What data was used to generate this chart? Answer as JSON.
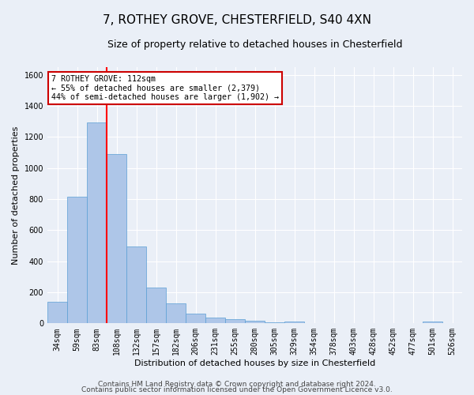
{
  "title1": "7, ROTHEY GROVE, CHESTERFIELD, S40 4XN",
  "title2": "Size of property relative to detached houses in Chesterfield",
  "xlabel": "Distribution of detached houses by size in Chesterfield",
  "ylabel": "Number of detached properties",
  "bar_color": "#aec6e8",
  "bar_edge_color": "#5a9fd4",
  "bar_width": 1.0,
  "categories": [
    "34sqm",
    "59sqm",
    "83sqm",
    "108sqm",
    "132sqm",
    "157sqm",
    "182sqm",
    "206sqm",
    "231sqm",
    "255sqm",
    "280sqm",
    "305sqm",
    "329sqm",
    "354sqm",
    "378sqm",
    "403sqm",
    "428sqm",
    "452sqm",
    "477sqm",
    "501sqm",
    "526sqm"
  ],
  "values": [
    138,
    815,
    1295,
    1090,
    495,
    232,
    130,
    65,
    37,
    26,
    15,
    7,
    14,
    3,
    3,
    1,
    1,
    1,
    1,
    14,
    1
  ],
  "red_line_index": 3,
  "ylim": [
    0,
    1650
  ],
  "yticks": [
    0,
    200,
    400,
    600,
    800,
    1000,
    1200,
    1400,
    1600
  ],
  "annotation_text": "7 ROTHEY GROVE: 112sqm\n← 55% of detached houses are smaller (2,379)\n44% of semi-detached houses are larger (1,902) →",
  "annotation_box_color": "#ffffff",
  "annotation_box_edge": "#cc0000",
  "footer1": "Contains HM Land Registry data © Crown copyright and database right 2024.",
  "footer2": "Contains public sector information licensed under the Open Government Licence v3.0.",
  "bg_color": "#eaeff7",
  "plot_bg_color": "#eaeff7",
  "grid_color": "#ffffff",
  "title1_fontsize": 11,
  "title2_fontsize": 9,
  "tick_fontsize": 7,
  "ylabel_fontsize": 8,
  "xlabel_fontsize": 8,
  "footer_fontsize": 6.5
}
